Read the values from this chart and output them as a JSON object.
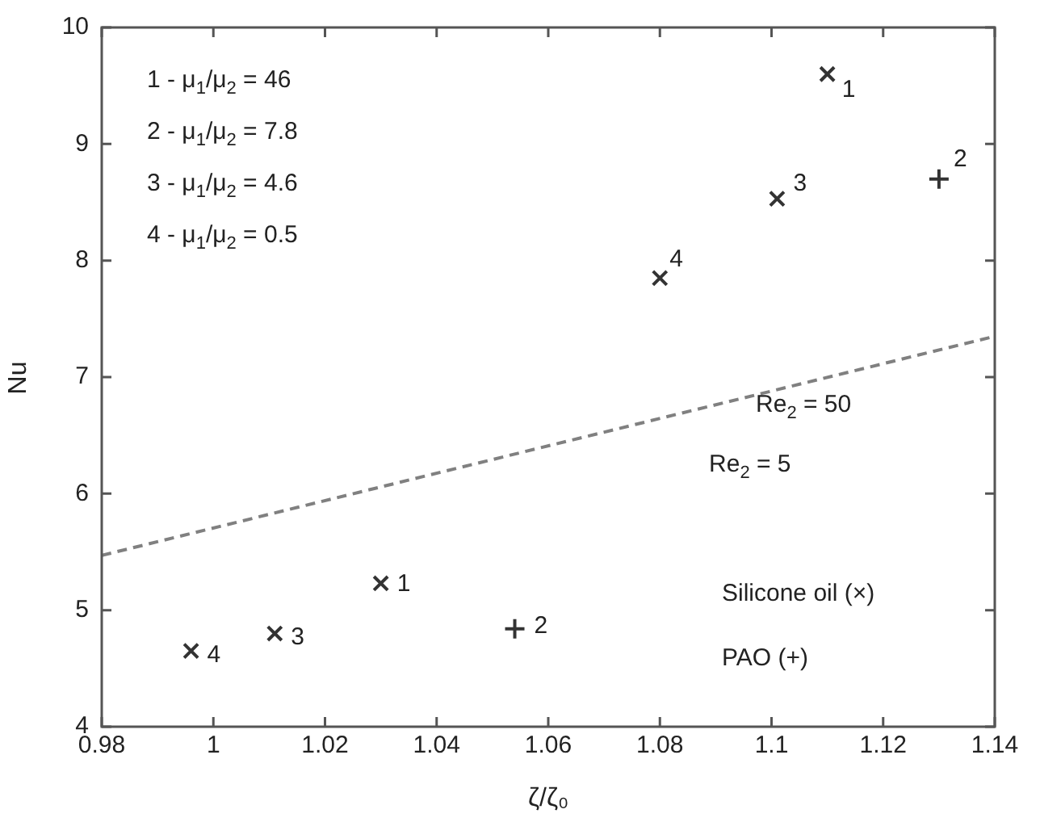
{
  "chart_data": {
    "type": "scatter",
    "xlabel": "ζ/ζ₀",
    "ylabel": "Nu",
    "xlim": [
      0.98,
      1.14
    ],
    "xticks": [
      0.98,
      1,
      1.02,
      1.04,
      1.06,
      1.08,
      1.1,
      1.12,
      1.14
    ],
    "ylim": [
      4,
      10
    ],
    "yticks": [
      4,
      5,
      6,
      7,
      8,
      9,
      10
    ],
    "grid": false,
    "legend": false,
    "series": [
      {
        "marker": "x",
        "color": "#333333",
        "x": [
          1.11,
          1.101,
          1.08,
          1.03,
          1.011,
          0.996
        ],
        "values": [
          9.6,
          8.53,
          7.85,
          5.23,
          4.8,
          4.65
        ]
      },
      {
        "marker": "cross",
        "color": "#333333",
        "x": [
          1.13,
          1.054
        ],
        "values": [
          8.7,
          4.84
        ]
      },
      {
        "type": "line",
        "marker": "none",
        "line_style": "dashed",
        "color": "#808080",
        "x": [
          0.98,
          1.14
        ],
        "values": [
          5.47,
          7.35
        ]
      }
    ],
    "annotations": [
      "1 - μ$_{1}$/μ$_{2}$ = 46",
      "2 - μ$_{1}$/μ$_{2}$ = 7.8",
      "3 - μ$_{1}$/μ$_{2}$ = 4.6",
      "4 - μ$_{1}$/μ$_{2}$ = 0.5",
      "Silicone oil (×)",
      "PAO (+)",
      "Re$_{2}$ = 50",
      "Re$_{2}$ = 5",
      {
        "text": "1",
        "x": 1.11,
        "y": 9.6
      },
      {
        "text": "2",
        "x": 1.13,
        "y": 8.7
      },
      {
        "text": "3",
        "x": 1.101,
        "y": 8.53
      },
      {
        "text": "4",
        "x": 1.08,
        "y": 7.85
      },
      {
        "text": "1",
        "x": 1.03,
        "y": 5.23
      },
      {
        "text": "2",
        "x": 1.054,
        "y": 4.84
      },
      {
        "text": "3",
        "x": 1.011,
        "y": 4.8
      },
      {
        "text": "4",
        "x": 0.996,
        "y": 4.65
      }
    ]
  }
}
